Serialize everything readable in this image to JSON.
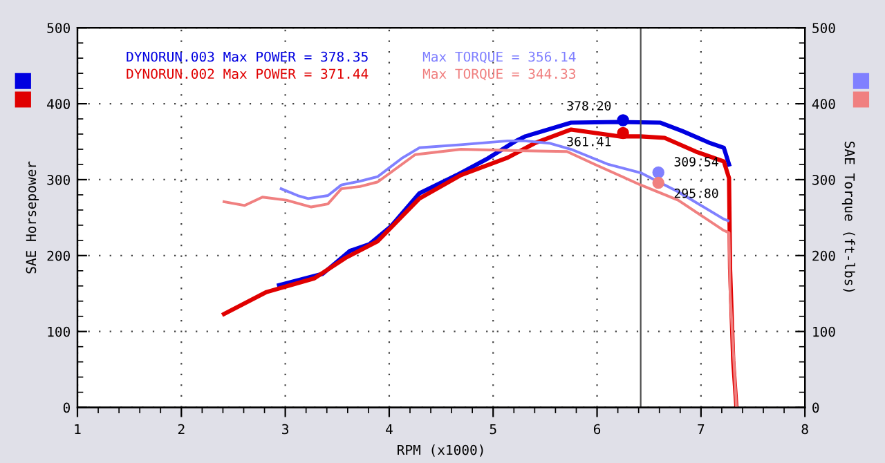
{
  "chart_data": {
    "type": "line",
    "xlabel": "RPM (x1000)",
    "ylabel": "SAE Horsepower",
    "y2label": "SAE Torque (ft-lbs)",
    "xlim": [
      1,
      8
    ],
    "xticks": [
      1,
      2,
      3,
      4,
      5,
      6,
      7,
      8
    ],
    "ylim": [
      0,
      500
    ],
    "yticks": [
      0,
      100,
      200,
      300,
      400,
      500
    ],
    "y2lim": [
      0,
      500
    ],
    "y2ticks": [
      0,
      100,
      200,
      300,
      400,
      500
    ],
    "grid": true,
    "legend": "top left",
    "marker": "none",
    "line_style": "solid",
    "series": [
      {
        "name": "DYNORUN.003 Max POWER = 378.35",
        "color": "#0000e0",
        "x": [
          2.94,
          3.36,
          3.62,
          3.81,
          4.02,
          4.29,
          4.65,
          4.95,
          5.22,
          5.31,
          5.75,
          6.21,
          6.61,
          6.82,
          7.09,
          7.22,
          7.27
        ],
        "values": [
          161,
          176,
          206,
          215,
          239,
          282,
          306,
          328,
          351,
          357,
          375,
          376,
          375,
          364,
          348,
          342,
          320
        ]
      },
      {
        "name": "DYNORUN.002 Max POWER = 371.44",
        "color": "#e00000",
        "x": [
          2.41,
          2.82,
          3.28,
          3.58,
          3.89,
          4.29,
          4.69,
          5.14,
          5.4,
          5.75,
          6.21,
          6.42,
          6.65,
          6.95,
          7.22,
          7.27,
          7.28,
          7.31,
          7.34
        ],
        "values": [
          123,
          152,
          170,
          197,
          219,
          275,
          306,
          329,
          348,
          366,
          357,
          357,
          355,
          337,
          324,
          302,
          183,
          62,
          2
        ]
      },
      {
        "name": "Max TORQUE = 356.14",
        "color": "#8080ff",
        "axis": "y2",
        "x": [
          2.96,
          3.12,
          3.22,
          3.41,
          3.54,
          3.72,
          3.89,
          4.12,
          4.29,
          4.69,
          5.14,
          5.31,
          5.54,
          5.75,
          6.11,
          6.42,
          6.78,
          7.22,
          7.26
        ],
        "values": [
          288,
          279,
          275,
          279,
          293,
          298,
          304,
          328,
          342,
          346,
          351,
          351,
          348,
          340,
          320,
          309,
          284,
          248,
          246
        ]
      },
      {
        "name": "Max TORQUE = 344.33",
        "color": "#f08080",
        "axis": "y2",
        "x": [
          2.41,
          2.61,
          2.78,
          3.01,
          3.25,
          3.41,
          3.54,
          3.72,
          3.89,
          4.25,
          4.69,
          5.31,
          5.71,
          5.98,
          6.42,
          6.78,
          7.22,
          7.27,
          7.28,
          7.34
        ],
        "values": [
          271,
          266,
          277,
          273,
          264,
          268,
          288,
          291,
          297,
          333,
          340,
          338,
          337,
          320,
          293,
          273,
          233,
          230,
          152,
          2
        ]
      },
      {
        "type": "scatter",
        "marker": "circle",
        "color": "#0000e0",
        "x": [
          6.25
        ],
        "values": [
          378.2
        ],
        "value_labels": [
          "378.20"
        ]
      },
      {
        "type": "scatter",
        "marker": "circle",
        "color": "#e00000",
        "x": [
          6.25
        ],
        "values": [
          361.41
        ],
        "value_labels": [
          "361.41"
        ]
      },
      {
        "type": "scatter",
        "marker": "circle",
        "color": "#8080ff",
        "axis": "y2",
        "x": [
          6.59
        ],
        "values": [
          309.54
        ],
        "value_labels": [
          "309.54"
        ]
      },
      {
        "type": "scatter",
        "marker": "circle",
        "color": "#f08080",
        "axis": "y2",
        "x": [
          6.59
        ],
        "values": [
          295.8
        ],
        "value_labels": [
          "295.80"
        ]
      }
    ],
    "ref_lines": [
      {
        "axis": "x",
        "value": 6.42,
        "color": "#505050"
      }
    ]
  }
}
